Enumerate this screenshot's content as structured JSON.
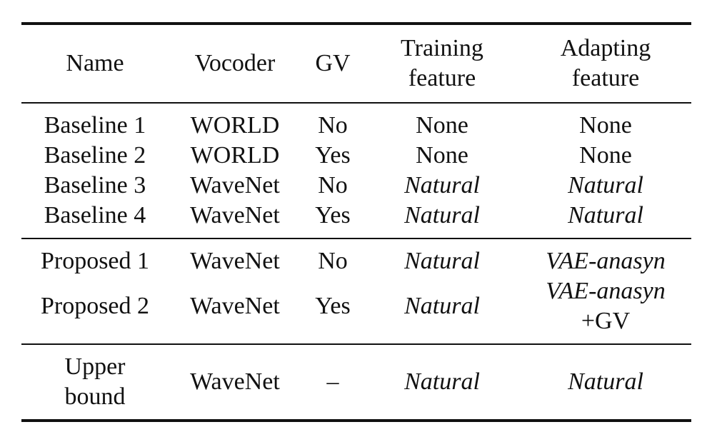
{
  "headers": {
    "name": "Name",
    "vocoder": "Vocoder",
    "gv": "GV",
    "training_line1": "Training",
    "training_line2": "feature",
    "adapting_line1": "Adapting",
    "adapting_line2": "feature"
  },
  "groups": [
    {
      "rows": [
        {
          "name": "Baseline 1",
          "vocoder": "WORLD",
          "gv": "No",
          "training": "None",
          "adapting": "None"
        },
        {
          "name": "Baseline 2",
          "vocoder": "WORLD",
          "gv": "Yes",
          "training": "None",
          "adapting": "None"
        },
        {
          "name": "Baseline 3",
          "vocoder": "WaveNet",
          "gv": "No",
          "training": "Natural",
          "adapting": "Natural"
        },
        {
          "name": "Baseline 4",
          "vocoder": "WaveNet",
          "gv": "Yes",
          "training": "Natural",
          "adapting": "Natural"
        }
      ]
    },
    {
      "rows": [
        {
          "name": "Proposed 1",
          "vocoder": "WaveNet",
          "gv": "No",
          "training": "Natural",
          "adapting": "VAE-anasyn"
        },
        {
          "name": "Proposed 2",
          "vocoder": "WaveNet",
          "gv": "Yes",
          "training": "Natural",
          "adapting_line1": "VAE-anasyn",
          "adapting_line2": "+GV"
        }
      ]
    },
    {
      "rows": [
        {
          "name_line1": "Upper",
          "name_line2": "bound",
          "vocoder": "WaveNet",
          "gv": "–",
          "training": "Natural",
          "adapting": "Natural"
        }
      ]
    }
  ]
}
